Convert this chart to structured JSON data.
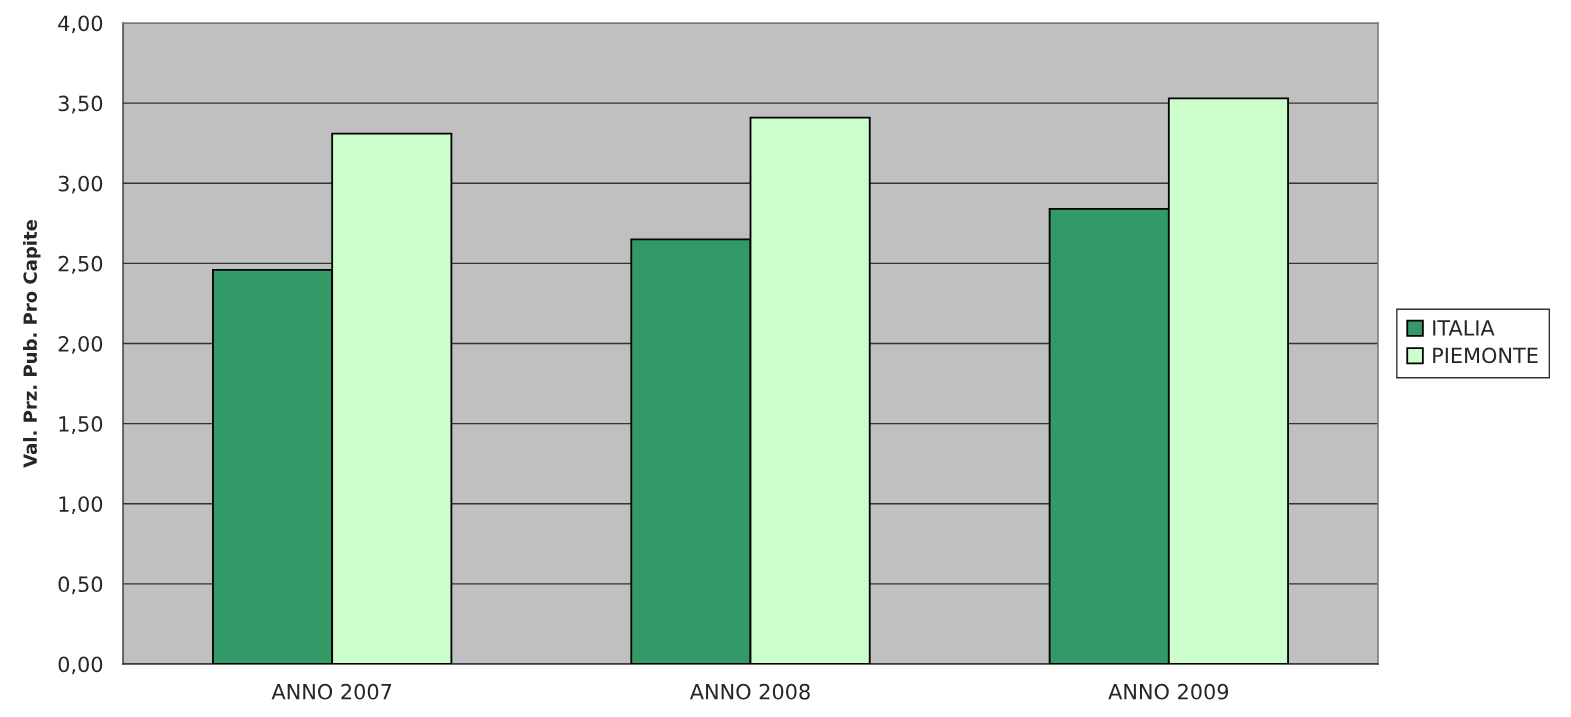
{
  "chart_data": {
    "type": "bar",
    "ylabel": "Val. Prz. Pub. Pro Capite",
    "categories": [
      "ANNO 2007",
      "ANNO 2008",
      "ANNO 2009"
    ],
    "series": [
      {
        "name": "ITALIA",
        "color": "#339966",
        "values": [
          2.46,
          2.65,
          2.84
        ]
      },
      {
        "name": "PIEMONTE",
        "color": "#ccffcc",
        "values": [
          3.31,
          3.41,
          3.53
        ]
      }
    ],
    "ylim": [
      0,
      4
    ],
    "yticks": [
      {
        "value": 0,
        "label": "0,00"
      },
      {
        "value": 0.5,
        "label": "0,50"
      },
      {
        "value": 1,
        "label": "1,00"
      },
      {
        "value": 1.5,
        "label": "1,50"
      },
      {
        "value": 2,
        "label": "2,00"
      },
      {
        "value": 2.5,
        "label": "2,50"
      },
      {
        "value": 3,
        "label": "3,00"
      },
      {
        "value": 3.5,
        "label": "3,50"
      },
      {
        "value": 4,
        "label": "4,00"
      }
    ],
    "grid": "y",
    "legend": "right"
  }
}
